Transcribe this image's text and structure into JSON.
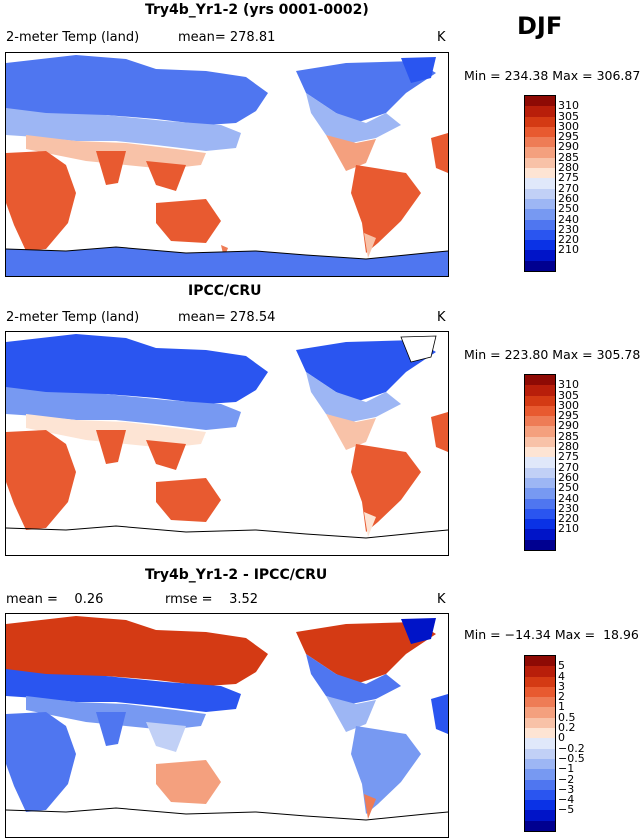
{
  "season": "DJF",
  "units": "K",
  "colors": {
    "temp": [
      "#000090",
      "#0014c8",
      "#0a32e6",
      "#2a55f0",
      "#4f76f0",
      "#7799f2",
      "#9db6f4",
      "#c1d0f6",
      "#e0e8fa",
      "#fde4d4",
      "#f8c2a8",
      "#f4a07e",
      "#ee7c56",
      "#e85a30",
      "#d43a14",
      "#b81e0a",
      "#8e0a04"
    ],
    "diff": [
      "#000090",
      "#0014c8",
      "#0a32e6",
      "#2a55f0",
      "#4f76f0",
      "#7799f2",
      "#9db6f4",
      "#c1d0f6",
      "#e0e8fa",
      "#fde4d4",
      "#f8c2a8",
      "#f4a07e",
      "#ee7c56",
      "#e85a30",
      "#d43a14",
      "#b81e0a",
      "#8e0a04"
    ]
  },
  "panels": [
    {
      "title": "Try4b_Yr1-2 (yrs 0001-0002)",
      "left_label": "2-meter Temp (land)",
      "mid_label": "mean= 278.81",
      "units": "K",
      "minmax": "Min = 234.38 Max = 306.87",
      "scale": "temp",
      "ticks": [
        "310",
        "305",
        "300",
        "295",
        "290",
        "285",
        "280",
        "275",
        "270",
        "260",
        "250",
        "240",
        "230",
        "220",
        "210"
      ]
    },
    {
      "title": "IPCC/CRU",
      "left_label": "2-meter Temp (land)",
      "mid_label": "mean= 278.54",
      "units": "K",
      "minmax": "Min = 223.80 Max = 305.78",
      "scale": "temp",
      "ticks": [
        "310",
        "305",
        "300",
        "295",
        "290",
        "285",
        "280",
        "275",
        "270",
        "260",
        "250",
        "240",
        "230",
        "220",
        "210"
      ]
    },
    {
      "title": "Try4b_Yr1-2 - IPCC/CRU",
      "left_label": "mean =    0.26",
      "mid_label": "rmse =    3.52",
      "units": "K",
      "minmax": "Min = −14.34 Max =  18.96",
      "scale": "diff",
      "ticks": [
        "5",
        "4",
        "3",
        "2",
        "1",
        "0.5",
        "0.2",
        "0",
        "−0.2",
        "−0.5",
        "−1",
        "−2",
        "−3",
        "−4",
        "−5"
      ]
    }
  ]
}
